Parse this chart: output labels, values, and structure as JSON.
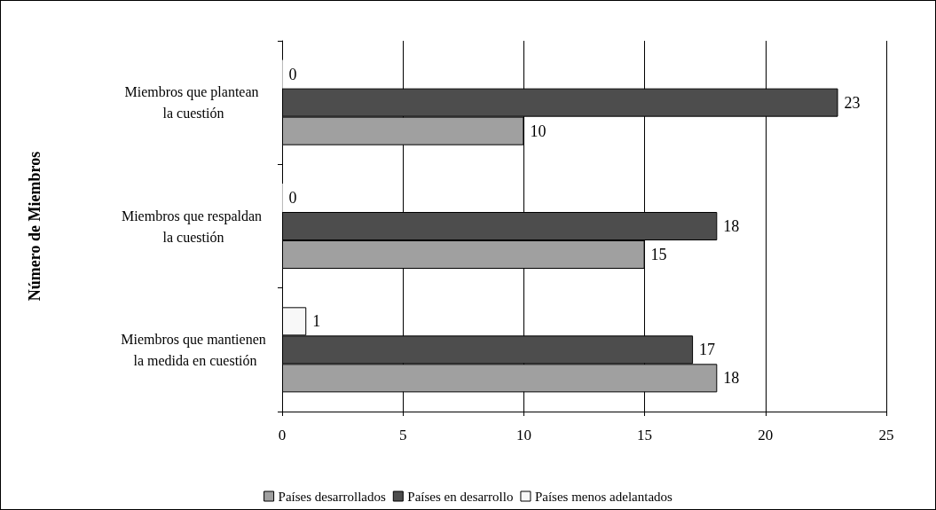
{
  "chart_data": {
    "type": "bar",
    "orientation": "horizontal",
    "ylabel": "Número de Miembros",
    "categories": [
      "Miembros que plantean la cuestión",
      "Miembros que respaldan la cuestión",
      "Miembros que mantienen la medida en cuestión"
    ],
    "series": [
      {
        "name": "Países menos adelantados",
        "color": "#f8f8f8",
        "values": [
          0,
          0,
          1
        ]
      },
      {
        "name": "Países en desarrollo",
        "color": "#4d4d4d",
        "values": [
          23,
          18,
          17
        ]
      },
      {
        "name": "Países desarrollados",
        "color": "#a0a0a0",
        "values": [
          10,
          15,
          18
        ]
      }
    ],
    "xlim": [
      0,
      25
    ],
    "xticks": [
      0,
      5,
      10,
      15,
      20,
      25
    ],
    "grid": "x",
    "legend": "bottom",
    "data_labels": true
  }
}
